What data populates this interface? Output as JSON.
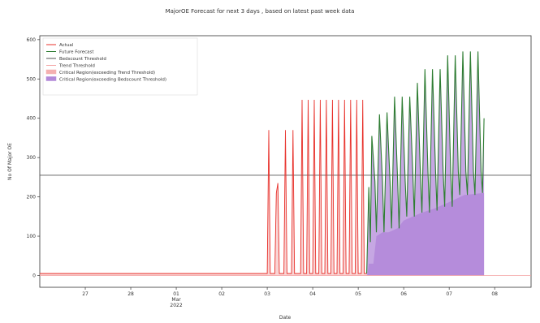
{
  "chart_data": {
    "type": "line",
    "title": "MajorOE Forecast for next 3 days , based on latest past week data",
    "xlabel": "Date",
    "ylabel": "No Of Major OE",
    "ylim": [
      -30,
      610
    ],
    "yticks": [
      0,
      100,
      200,
      300,
      400,
      500,
      600
    ],
    "xlim": [
      0,
      16.2
    ],
    "xticks": [
      {
        "x": 1.5,
        "label": "27"
      },
      {
        "x": 3.0,
        "label": "28"
      },
      {
        "x": 4.5,
        "label": "01",
        "sub": [
          "Mar",
          "2022"
        ]
      },
      {
        "x": 6.0,
        "label": "02"
      },
      {
        "x": 7.5,
        "label": "03"
      },
      {
        "x": 9.0,
        "label": "04"
      },
      {
        "x": 10.5,
        "label": "05"
      },
      {
        "x": 12.0,
        "label": "06"
      },
      {
        "x": 13.5,
        "label": "07"
      },
      {
        "x": 15.0,
        "label": "08"
      }
    ],
    "grid": false,
    "legend_position": "top-left",
    "thresholds": {
      "bedscount": 255,
      "trend": 0
    },
    "series": [
      {
        "name": "Actual",
        "color": "#e8312b",
        "points": [
          [
            0,
            5
          ],
          [
            7.5,
            5
          ],
          [
            7.55,
            370
          ],
          [
            7.6,
            5
          ],
          [
            7.75,
            5
          ],
          [
            7.8,
            210
          ],
          [
            7.85,
            235
          ],
          [
            7.9,
            5
          ],
          [
            8.05,
            5
          ],
          [
            8.1,
            370
          ],
          [
            8.15,
            5
          ],
          [
            8.3,
            5
          ],
          [
            8.35,
            370
          ],
          [
            8.4,
            5
          ],
          [
            8.6,
            5
          ],
          [
            8.65,
            447
          ],
          [
            8.7,
            5
          ],
          [
            8.8,
            5
          ],
          [
            8.85,
            447
          ],
          [
            8.9,
            5
          ],
          [
            9.0,
            5
          ],
          [
            9.05,
            447
          ],
          [
            9.1,
            5
          ],
          [
            9.2,
            5
          ],
          [
            9.25,
            447
          ],
          [
            9.3,
            5
          ],
          [
            9.4,
            5
          ],
          [
            9.45,
            447
          ],
          [
            9.5,
            5
          ],
          [
            9.6,
            5
          ],
          [
            9.65,
            447
          ],
          [
            9.7,
            5
          ],
          [
            9.8,
            5
          ],
          [
            9.85,
            447
          ],
          [
            9.9,
            5
          ],
          [
            10.0,
            5
          ],
          [
            10.05,
            447
          ],
          [
            10.1,
            5
          ],
          [
            10.2,
            5
          ],
          [
            10.25,
            447
          ],
          [
            10.3,
            5
          ],
          [
            10.4,
            5
          ],
          [
            10.45,
            447
          ],
          [
            10.5,
            5
          ],
          [
            10.6,
            5
          ],
          [
            10.65,
            447
          ],
          [
            10.7,
            5
          ],
          [
            10.78,
            5
          ]
        ]
      },
      {
        "name": "Future Forecast",
        "color": "#2e7d32",
        "points": [
          [
            10.78,
            5
          ],
          [
            10.85,
            225
          ],
          [
            10.9,
            85
          ],
          [
            10.95,
            355
          ],
          [
            11.05,
            240
          ],
          [
            11.1,
            110
          ],
          [
            11.2,
            410
          ],
          [
            11.3,
            240
          ],
          [
            11.35,
            110
          ],
          [
            11.45,
            415
          ],
          [
            11.55,
            240
          ],
          [
            11.6,
            120
          ],
          [
            11.7,
            455
          ],
          [
            11.8,
            240
          ],
          [
            11.85,
            120
          ],
          [
            11.95,
            455
          ],
          [
            12.05,
            240
          ],
          [
            12.1,
            150
          ],
          [
            12.2,
            455
          ],
          [
            12.3,
            260
          ],
          [
            12.35,
            150
          ],
          [
            12.45,
            490
          ],
          [
            12.55,
            260
          ],
          [
            12.6,
            160
          ],
          [
            12.7,
            525
          ],
          [
            12.8,
            265
          ],
          [
            12.85,
            160
          ],
          [
            12.95,
            525
          ],
          [
            13.05,
            265
          ],
          [
            13.1,
            165
          ],
          [
            13.2,
            525
          ],
          [
            13.3,
            265
          ],
          [
            13.35,
            175
          ],
          [
            13.45,
            560
          ],
          [
            13.55,
            265
          ],
          [
            13.6,
            175
          ],
          [
            13.7,
            560
          ],
          [
            13.8,
            265
          ],
          [
            13.85,
            205
          ],
          [
            13.95,
            570
          ],
          [
            14.05,
            265
          ],
          [
            14.1,
            205
          ],
          [
            14.2,
            570
          ],
          [
            14.3,
            265
          ],
          [
            14.35,
            205
          ],
          [
            14.45,
            570
          ],
          [
            14.55,
            265
          ],
          [
            14.6,
            210
          ],
          [
            14.65,
            400
          ]
        ]
      },
      {
        "name": "Bedscount Threshold",
        "color": "#555555"
      },
      {
        "name": "Trend Threshold",
        "color": "#f4a0a0"
      },
      {
        "name": "Critical Region(exceeding Trend Threshold)",
        "color": "#f4b0b0"
      },
      {
        "name": "Critical Region(exceeding Bedscount Threshold)",
        "color": "#b38ad9"
      }
    ],
    "critical_trend_region": {
      "from": 7.5,
      "to": 10.78,
      "value": 447
    },
    "critical_bedscount_region": {
      "points": [
        [
          10.8,
          0
        ],
        [
          10.85,
          30
        ],
        [
          11.0,
          30
        ],
        [
          11.1,
          100
        ],
        [
          11.3,
          110
        ],
        [
          11.5,
          110
        ],
        [
          11.8,
          120
        ],
        [
          12.0,
          140
        ],
        [
          12.3,
          150
        ],
        [
          12.6,
          160
        ],
        [
          13.0,
          170
        ],
        [
          13.3,
          180
        ],
        [
          13.6,
          190
        ],
        [
          14.0,
          205
        ],
        [
          14.65,
          210
        ],
        [
          14.65,
          0
        ]
      ]
    }
  }
}
